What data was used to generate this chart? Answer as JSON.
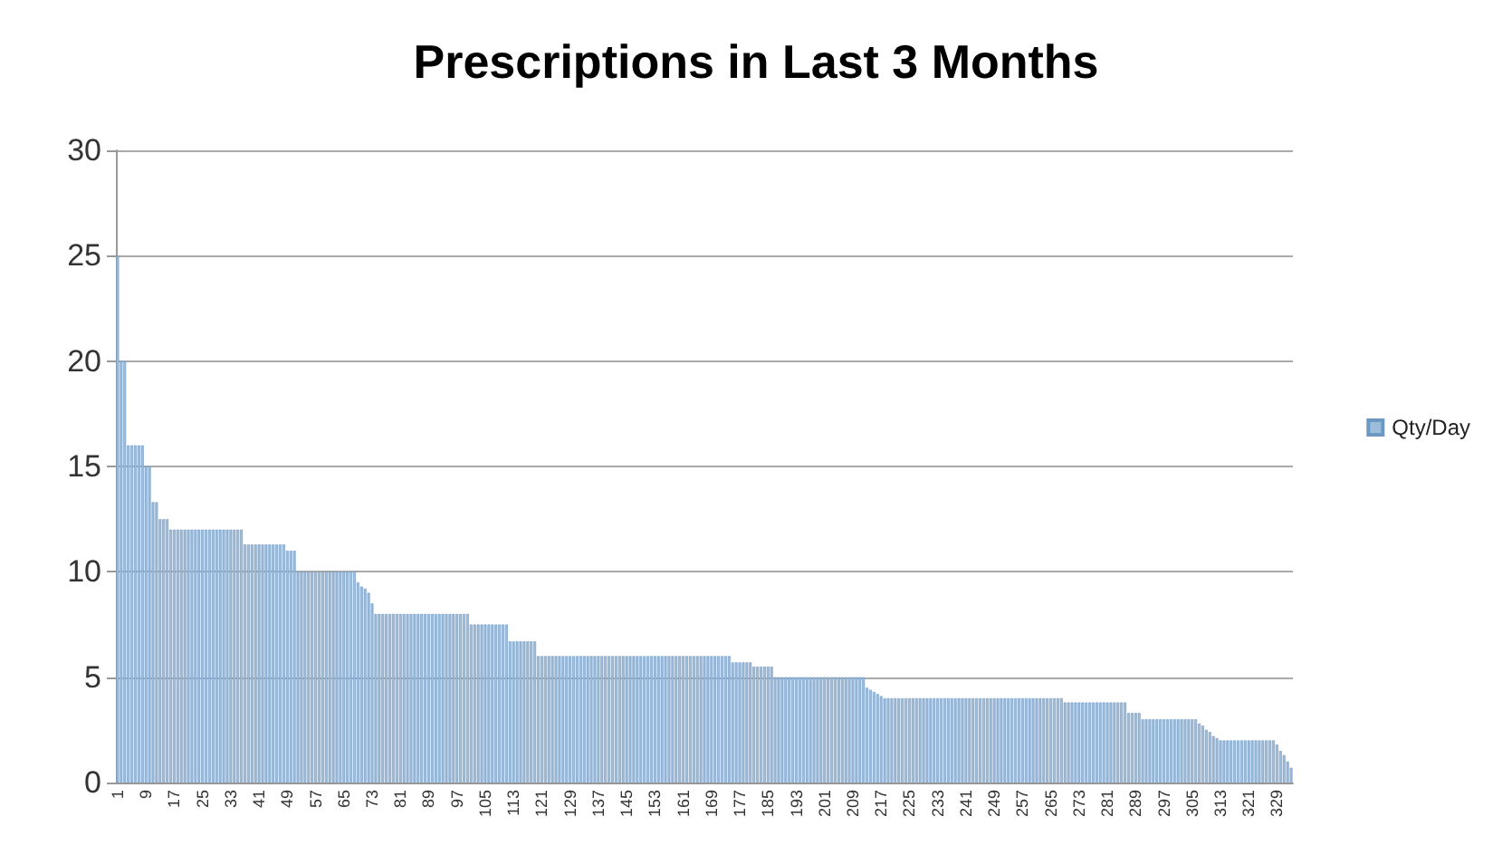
{
  "chart_data": {
    "type": "bar",
    "title": "Prescriptions in Last 3 Months",
    "categories": [
      "1",
      null,
      null,
      null,
      null,
      null,
      null,
      null,
      "9",
      null,
      null,
      null,
      null,
      null,
      null,
      null,
      "17",
      null,
      null,
      null,
      null,
      null,
      null,
      null,
      "25",
      null,
      null,
      null,
      null,
      null,
      null,
      null,
      "33",
      null,
      null,
      null,
      null,
      null,
      null,
      null,
      "41",
      null,
      null,
      null,
      null,
      null,
      null,
      null,
      "49",
      null,
      null,
      null,
      null,
      null,
      null,
      null,
      "57",
      null,
      null,
      null,
      null,
      null,
      null,
      null,
      "65",
      null,
      null,
      null,
      null,
      null,
      null,
      null,
      "73",
      null,
      null,
      null,
      null,
      null,
      null,
      null,
      "81",
      null,
      null,
      null,
      null,
      null,
      null,
      null,
      "89",
      null,
      null,
      null,
      null,
      null,
      null,
      null,
      "97",
      null,
      null,
      null,
      null,
      null,
      null,
      null,
      "105",
      null,
      null,
      null,
      null,
      null,
      null,
      null,
      "113",
      null,
      null,
      null,
      null,
      null,
      null,
      null,
      "121",
      null,
      null,
      null,
      null,
      null,
      null,
      null,
      "129",
      null,
      null,
      null,
      null,
      null,
      null,
      null,
      "137",
      null,
      null,
      null,
      null,
      null,
      null,
      null,
      "145",
      null,
      null,
      null,
      null,
      null,
      null,
      null,
      "153",
      null,
      null,
      null,
      null,
      null,
      null,
      null,
      "161",
      null,
      null,
      null,
      null,
      null,
      null,
      null,
      "169",
      null,
      null,
      null,
      null,
      null,
      null,
      null,
      "177",
      null,
      null,
      null,
      null,
      null,
      null,
      null,
      "185",
      null,
      null,
      null,
      null,
      null,
      null,
      null,
      "193",
      null,
      null,
      null,
      null,
      null,
      null,
      null,
      "201",
      null,
      null,
      null,
      null,
      null,
      null,
      null,
      "209",
      null,
      null,
      null,
      null,
      null,
      null,
      null,
      "217",
      null,
      null,
      null,
      null,
      null,
      null,
      null,
      "225",
      null,
      null,
      null,
      null,
      null,
      null,
      null,
      "233",
      null,
      null,
      null,
      null,
      null,
      null,
      null,
      "241",
      null,
      null,
      null,
      null,
      null,
      null,
      null,
      "249",
      null,
      null,
      null,
      null,
      null,
      null,
      null,
      "257",
      null,
      null,
      null,
      null,
      null,
      null,
      null,
      "265",
      null,
      null,
      null,
      null,
      null,
      null,
      null,
      "273",
      null,
      null,
      null,
      null,
      null,
      null,
      null,
      "281",
      null,
      null,
      null,
      null,
      null,
      null,
      null,
      "289",
      null,
      null,
      null,
      null,
      null,
      null,
      null,
      "297",
      null,
      null,
      null,
      null,
      null,
      null,
      null,
      "305",
      null,
      null,
      null,
      null,
      null,
      null,
      null,
      "313",
      null,
      null,
      null,
      null,
      null,
      null,
      null,
      "321",
      null,
      null,
      null,
      null,
      null,
      null,
      null,
      "329",
      null,
      null,
      null,
      null
    ],
    "series": [
      {
        "name": "Qty/Day",
        "color": "#9dbddc",
        "values": [
          25,
          20,
          20,
          16,
          16,
          16,
          16,
          16,
          15,
          15,
          13.3,
          13.3,
          12.5,
          12.5,
          12.5,
          12,
          12,
          12,
          12,
          12,
          12,
          12,
          12,
          12,
          12,
          12,
          12,
          12,
          12,
          12,
          12,
          12,
          12,
          12,
          12,
          12,
          11.3,
          11.3,
          11.3,
          11.3,
          11.3,
          11.3,
          11.3,
          11.3,
          11.3,
          11.3,
          11.3,
          11.3,
          11,
          11,
          11,
          10,
          10,
          10,
          10,
          10,
          10,
          10,
          10,
          10,
          10,
          10,
          10,
          10,
          10,
          10,
          10,
          10,
          9.5,
          9.3,
          9.2,
          9,
          8.5,
          8,
          8,
          8,
          8,
          8,
          8,
          8,
          8,
          8,
          8,
          8,
          8,
          8,
          8,
          8,
          8,
          8,
          8,
          8,
          8,
          8,
          8,
          8,
          8,
          8,
          8,
          8,
          7.5,
          7.5,
          7.5,
          7.5,
          7.5,
          7.5,
          7.5,
          7.5,
          7.5,
          7.5,
          7.5,
          6.7,
          6.7,
          6.7,
          6.7,
          6.7,
          6.7,
          6.7,
          6.7,
          6,
          6,
          6,
          6,
          6,
          6,
          6,
          6,
          6,
          6,
          6,
          6,
          6,
          6,
          6,
          6,
          6,
          6,
          6,
          6,
          6,
          6,
          6,
          6,
          6,
          6,
          6,
          6,
          6,
          6,
          6,
          6,
          6,
          6,
          6,
          6,
          6,
          6,
          6,
          6,
          6,
          6,
          6,
          6,
          6,
          6,
          6,
          6,
          6,
          6,
          6,
          6,
          6,
          6,
          6,
          5.7,
          5.7,
          5.7,
          5.7,
          5.7,
          5.7,
          5.5,
          5.5,
          5.5,
          5.5,
          5.5,
          5.5,
          5,
          5,
          5,
          5,
          5,
          5,
          5,
          5,
          5,
          5,
          5,
          5,
          5,
          5,
          5,
          5,
          5,
          5,
          5,
          5,
          5,
          5,
          5,
          5,
          5,
          5,
          4.5,
          4.4,
          4.3,
          4.2,
          4.1,
          4,
          4,
          4,
          4,
          4,
          4,
          4,
          4,
          4,
          4,
          4,
          4,
          4,
          4,
          4,
          4,
          4,
          4,
          4,
          4,
          4,
          4,
          4,
          4,
          4,
          4,
          4,
          4,
          4,
          4,
          4,
          4,
          4,
          4,
          4,
          4,
          4,
          4,
          4,
          4,
          4,
          4,
          4,
          4,
          4,
          4,
          4,
          4,
          4,
          4,
          4,
          3.8,
          3.8,
          3.8,
          3.8,
          3.8,
          3.8,
          3.8,
          3.8,
          3.8,
          3.8,
          3.8,
          3.8,
          3.8,
          3.8,
          3.8,
          3.8,
          3.8,
          3.8,
          3.3,
          3.3,
          3.3,
          3.3,
          3,
          3,
          3,
          3,
          3,
          3,
          3,
          3,
          3,
          3,
          3,
          3,
          3,
          3,
          3,
          3,
          2.8,
          2.7,
          2.5,
          2.4,
          2.2,
          2.1,
          2,
          2,
          2,
          2,
          2,
          2,
          2,
          2,
          2,
          2,
          2,
          2,
          2,
          2,
          2,
          2,
          1.8,
          1.5,
          1.3,
          1,
          0.7
        ]
      }
    ],
    "ylim": [
      0,
      30
    ],
    "yticks": [
      0,
      5,
      10,
      15,
      20,
      25,
      30
    ],
    "grid": "y",
    "legend": "right"
  }
}
